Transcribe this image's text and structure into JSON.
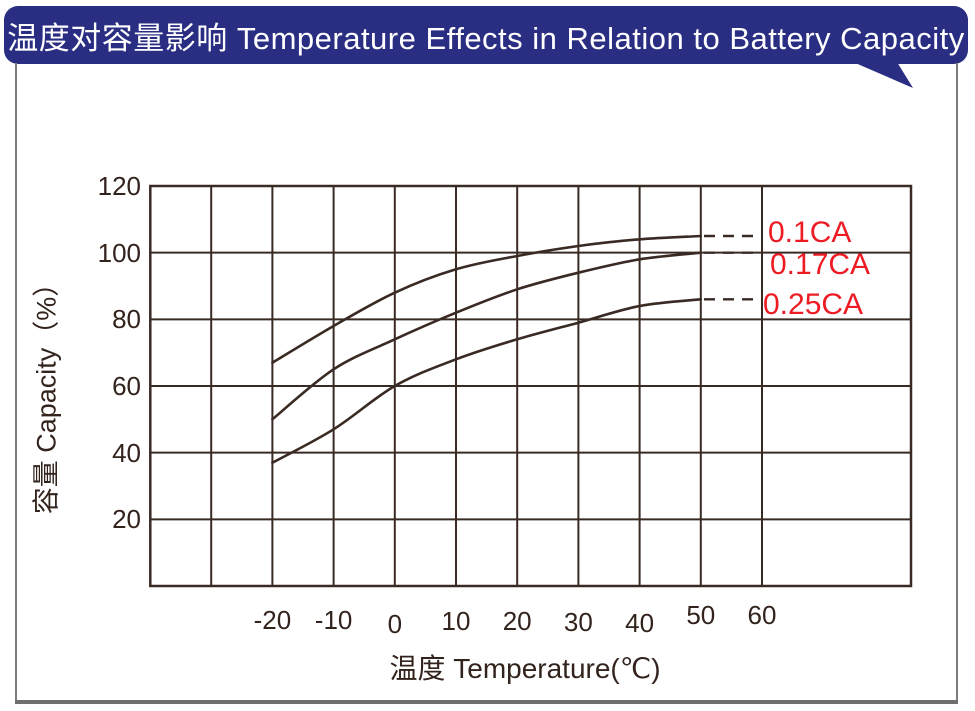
{
  "banner": {
    "title": "温度对容量影响  Temperature Effects in Relation to Battery Capacity",
    "bg_color": "#2a2e83",
    "text_color": "#ffffff"
  },
  "page": {
    "background": "#ffffff",
    "border_color": "#7c7c7c",
    "border_bottom_color": "#6e6e6e"
  },
  "chart_data": {
    "type": "line",
    "title": "温度对容量影响 Temperature Effects in Relation to Battery Capacity",
    "xlabel": "温度  Temperature(℃)",
    "ylabel": "容量  Capacity（%）",
    "x_ticks": [
      -20,
      -10,
      0,
      10,
      20,
      30,
      40,
      50,
      60
    ],
    "y_ticks": [
      120,
      100,
      80,
      60,
      40,
      20
    ],
    "xlim": [
      -40,
      84
    ],
    "ylim": [
      0,
      120
    ],
    "grid": true,
    "grid_step_x": 10,
    "grid_step_y": 20,
    "x": [
      -20,
      -10,
      0,
      10,
      20,
      30,
      40,
      50
    ],
    "series": [
      {
        "name": "0.1CA",
        "values": [
          67,
          78,
          88,
          95,
          99,
          102,
          104,
          105
        ]
      },
      {
        "name": "0.17CA",
        "values": [
          50,
          65,
          74,
          82,
          89,
          94,
          98,
          100
        ]
      },
      {
        "name": "0.25CA",
        "values": [
          37,
          47,
          60,
          68,
          74,
          79,
          84,
          86
        ]
      }
    ],
    "dashed_tail_x_end": 57,
    "legend_position": "right-inline",
    "line_color": "#3a2a24",
    "text_color": "#33231d",
    "series_label_color": "#ed1c24"
  }
}
